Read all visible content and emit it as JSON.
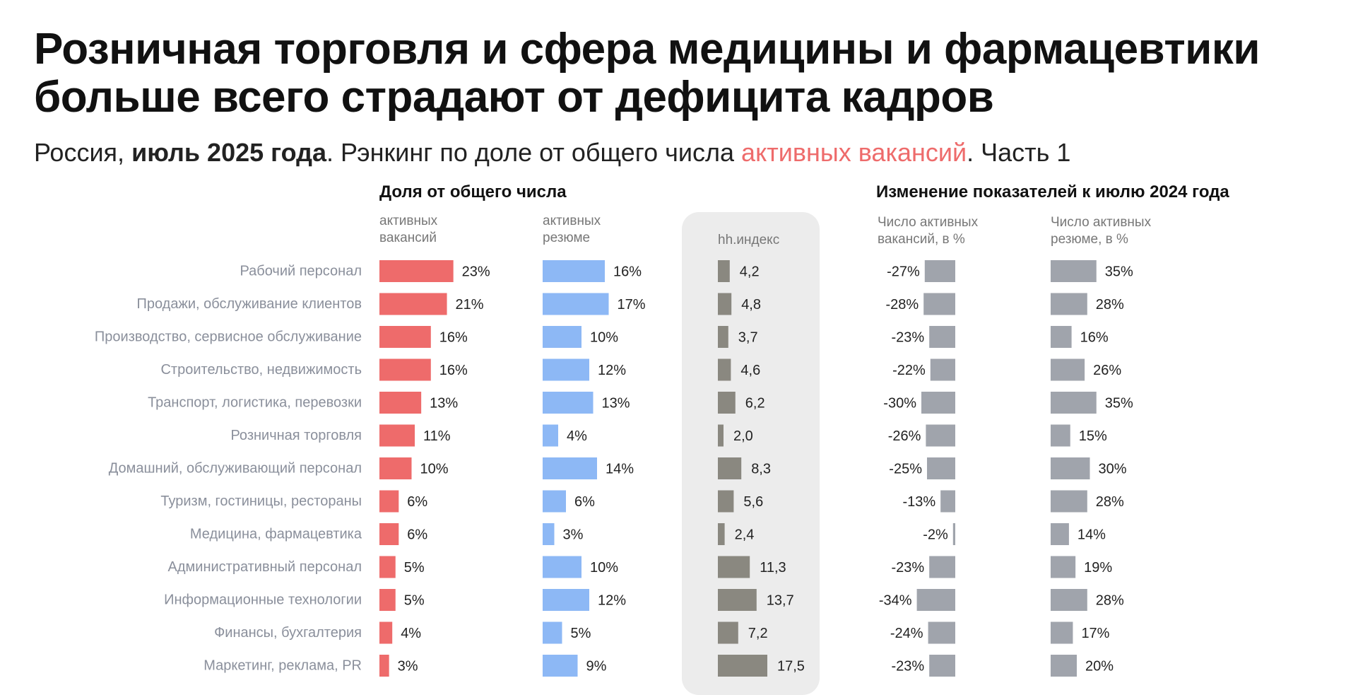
{
  "title": "Розничная торговля и сфера медицины и фармацевтики больше всего страдают от дефицита кадров",
  "subtitle": {
    "part1": "Россия, ",
    "bold": "июль 2025 года",
    "part2": ". Рэнкинг по доле от общего числа ",
    "accent": "активных вакансий",
    "part3": ". Часть 1"
  },
  "headers": {
    "share_group": "Доля от общего числа",
    "change_group": "Изменение показателей к июлю 2024 года",
    "vacancies": "активных\nвакансий",
    "resumes": "активных\nрезюме",
    "hh_index": "hh.индекс",
    "vac_change": "Число активных\nвакансий, в %",
    "res_change": "Число активных\nрезюме, в %"
  },
  "colors": {
    "vacancies": "#ee6b6b",
    "resumes": "#8db8f5",
    "hh_index": "#8a8880",
    "change": "#a0a4ac",
    "category_label": "#8a8f9b",
    "value_label": "#222222"
  },
  "chart_data": {
    "type": "bar",
    "categories": [
      "Рабочий персонал",
      "Продажи, обслуживание клиентов",
      "Производство, сервисное обслуживание",
      "Строительство, недвижимость",
      "Транспорт, логистика, перевозки",
      "Розничная торговля",
      "Домашний, обслуживающий персонал",
      "Туризм, гостиницы, рестораны",
      "Медицина, фармацевтика",
      "Административный персонал",
      "Информационные технологии",
      "Финансы, бухгалтерия",
      "Маркетинг, реклама, PR"
    ],
    "series": [
      {
        "key": "vacancies",
        "values": [
          23,
          21,
          16,
          16,
          13,
          11,
          10,
          6,
          6,
          5,
          5,
          4,
          3
        ],
        "labels": [
          "23%",
          "21%",
          "16%",
          "16%",
          "13%",
          "11%",
          "10%",
          "6%",
          "6%",
          "5%",
          "5%",
          "4%",
          "3%"
        ]
      },
      {
        "key": "resumes",
        "values": [
          16,
          17,
          10,
          12,
          13,
          4,
          14,
          6,
          3,
          10,
          12,
          5,
          9
        ],
        "labels": [
          "16%",
          "17%",
          "10%",
          "12%",
          "13%",
          "4%",
          "14%",
          "6%",
          "3%",
          "10%",
          "12%",
          "5%",
          "9%"
        ]
      },
      {
        "key": "hh_index",
        "values": [
          4.2,
          4.8,
          3.7,
          4.6,
          6.2,
          2.0,
          8.3,
          5.6,
          2.4,
          11.3,
          13.7,
          7.2,
          17.5
        ],
        "labels": [
          "4,2",
          "4,8",
          "3,7",
          "4,6",
          "6,2",
          "2,0",
          "8,3",
          "5,6",
          "2,4",
          "11,3",
          "13,7",
          "7,2",
          "17,5"
        ]
      },
      {
        "key": "vac_change",
        "values": [
          -27,
          -28,
          -23,
          -22,
          -30,
          -26,
          -25,
          -13,
          -2,
          -23,
          -34,
          -24,
          -23
        ],
        "labels": [
          "-27%",
          "-28%",
          "-23%",
          "-22%",
          "-30%",
          "-26%",
          "-25%",
          "-13%",
          "-2%",
          "-23%",
          "-34%",
          "-24%",
          "-23%"
        ]
      },
      {
        "key": "res_change",
        "values": [
          35,
          28,
          16,
          26,
          35,
          15,
          30,
          28,
          14,
          19,
          28,
          17,
          20
        ],
        "labels": [
          "35%",
          "28%",
          "16%",
          "26%",
          "35%",
          "15%",
          "30%",
          "28%",
          "14%",
          "19%",
          "28%",
          "17%",
          "20%"
        ]
      }
    ]
  }
}
